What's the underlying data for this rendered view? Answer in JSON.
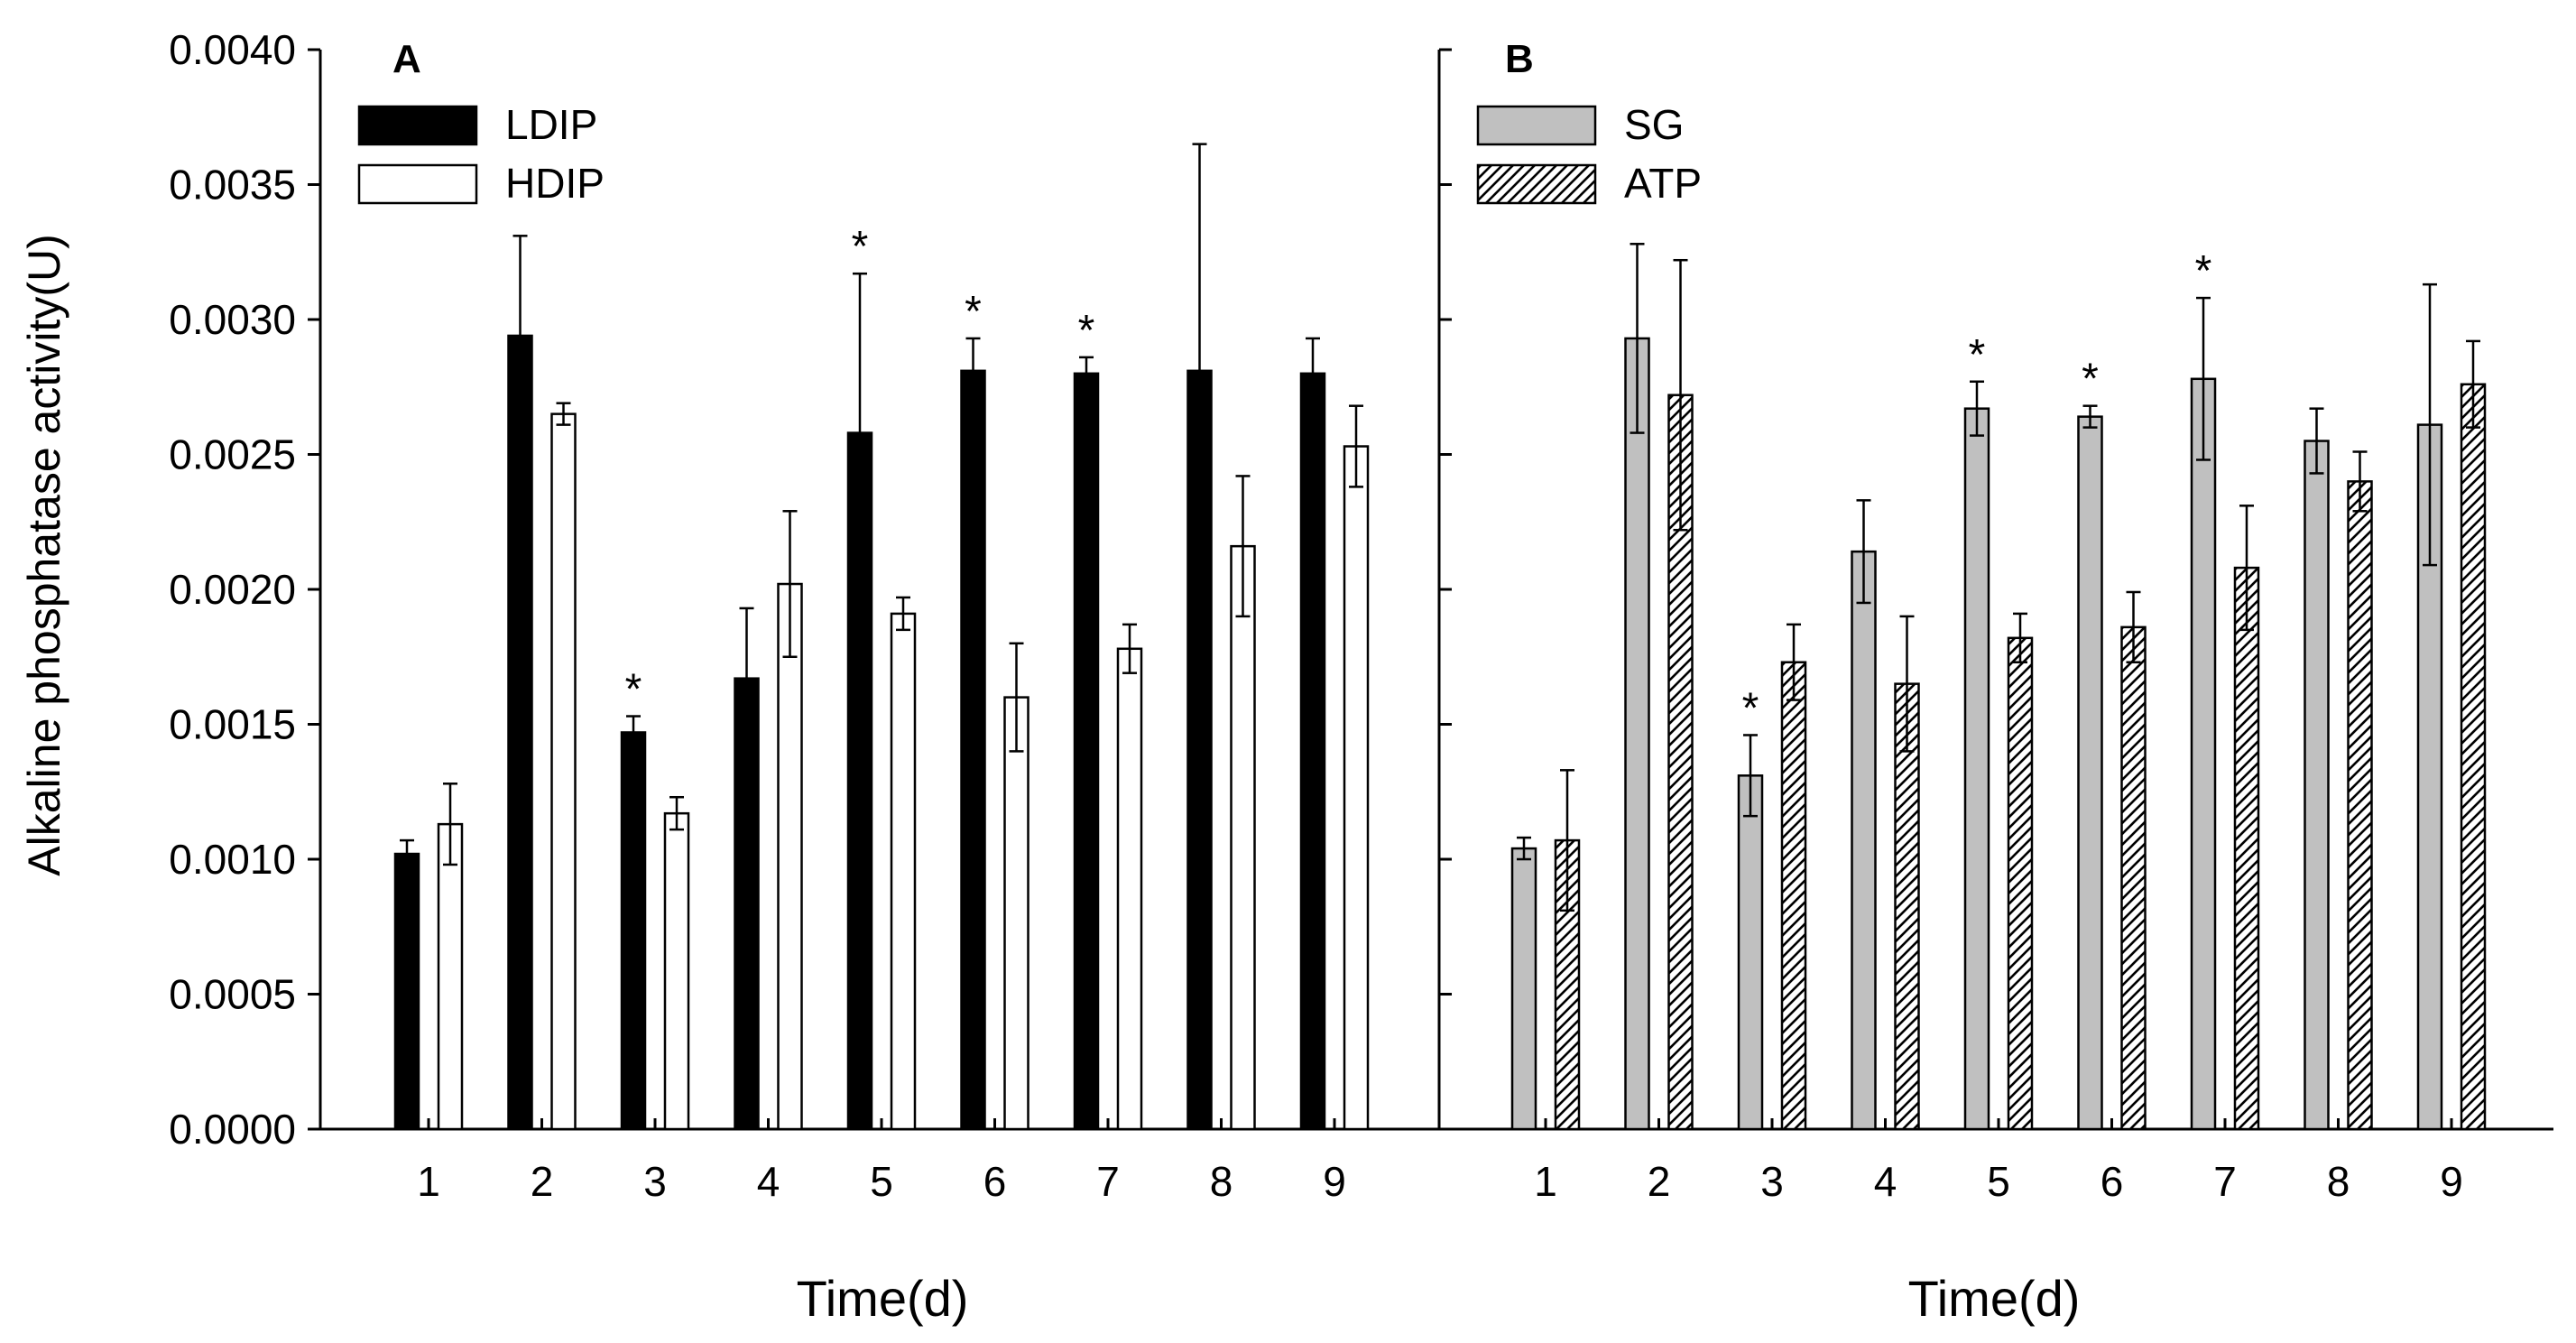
{
  "chart_data": {
    "type": "bar",
    "ylabel": "Alkaline phosphatase activity(U)",
    "ylim": [
      0,
      0.004
    ],
    "yticks": [
      "0.0000",
      "0.0005",
      "0.0010",
      "0.0015",
      "0.0020",
      "0.0025",
      "0.0030",
      "0.0035",
      "0.0040"
    ],
    "panels": [
      {
        "label": "A",
        "xlabel": "Time(d)",
        "categories": [
          "1",
          "2",
          "3",
          "4",
          "5",
          "6",
          "7",
          "8",
          "9"
        ],
        "series": [
          {
            "name": "LDIP",
            "pattern": "solid-black",
            "values": [
              0.00102,
              0.00294,
              0.00147,
              0.00167,
              0.00258,
              0.00281,
              0.0028,
              0.00281,
              0.0028
            ],
            "errors": [
              5e-05,
              0.00037,
              6e-05,
              0.00026,
              0.00059,
              0.00012,
              6e-05,
              0.00084,
              0.00013
            ]
          },
          {
            "name": "HDIP",
            "pattern": "white",
            "values": [
              0.00113,
              0.00265,
              0.00117,
              0.00202,
              0.00191,
              0.0016,
              0.00178,
              0.00216,
              0.00253
            ],
            "errors": [
              0.00015,
              4e-05,
              6e-05,
              0.00027,
              6e-05,
              0.0002,
              9e-05,
              0.00026,
              0.00015
            ]
          }
        ],
        "significance": [
          "",
          "",
          "*",
          "",
          "*",
          "*",
          "*",
          "",
          ""
        ]
      },
      {
        "label": "B",
        "xlabel": "Time(d)",
        "categories": [
          "1",
          "2",
          "3",
          "4",
          "5",
          "6",
          "7",
          "8",
          "9"
        ],
        "series": [
          {
            "name": "SG",
            "pattern": "solid-gray",
            "values": [
              0.00104,
              0.00293,
              0.00131,
              0.00214,
              0.00267,
              0.00264,
              0.00278,
              0.00255,
              0.00261
            ],
            "errors": [
              4e-05,
              0.00035,
              0.00015,
              0.00019,
              0.0001,
              4e-05,
              0.0003,
              0.00012,
              0.00052
            ]
          },
          {
            "name": "ATP",
            "pattern": "hatched",
            "values": [
              0.00107,
              0.00272,
              0.00173,
              0.00165,
              0.00182,
              0.00186,
              0.00208,
              0.0024,
              0.00276
            ],
            "errors": [
              0.00026,
              0.0005,
              0.00014,
              0.00025,
              9e-05,
              0.00013,
              0.00023,
              0.00011,
              0.00016
            ]
          }
        ],
        "significance": [
          "",
          "",
          "*",
          "",
          "*",
          "*",
          "*",
          "",
          ""
        ]
      }
    ]
  }
}
